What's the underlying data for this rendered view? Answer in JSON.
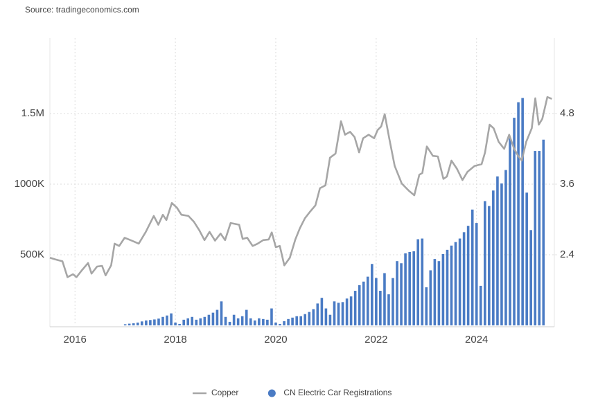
{
  "chart_data": {
    "type": "combo",
    "source": "Source: tradingeconomics.com",
    "xlim": [
      2015.5,
      2025.55
    ],
    "xticks": [
      2016,
      2018,
      2020,
      2022,
      2024
    ],
    "ylim": [
      0,
      2000000
    ],
    "yticks": [
      {
        "value": 500000,
        "label": "500K"
      },
      {
        "value": 1000000,
        "label": "1000K"
      },
      {
        "value": 1500000,
        "label": "1.5M"
      }
    ],
    "y2lim": [
      1.2,
      6.0
    ],
    "y2ticks": [
      2.4,
      3.6,
      4.8
    ],
    "grid": true,
    "legend": "bottom",
    "series": [
      {
        "name": "Copper",
        "type": "line",
        "axis": "y2",
        "color": "#a6a6a6",
        "x": [
          2015.5,
          2015.61,
          2015.75,
          2015.85,
          2015.96,
          2016.03,
          2016.14,
          2016.26,
          2016.33,
          2016.44,
          2016.54,
          2016.61,
          2016.72,
          2016.79,
          2016.88,
          2016.99,
          2017.13,
          2017.27,
          2017.41,
          2017.57,
          2017.66,
          2017.75,
          2017.82,
          2017.93,
          2018.03,
          2018.12,
          2018.26,
          2018.37,
          2018.48,
          2018.58,
          2018.68,
          2018.79,
          2018.9,
          2018.99,
          2019.1,
          2019.27,
          2019.34,
          2019.43,
          2019.54,
          2019.64,
          2019.75,
          2019.86,
          2019.92,
          2020.0,
          2020.08,
          2020.17,
          2020.28,
          2020.39,
          2020.48,
          2020.58,
          2020.69,
          2020.79,
          2020.88,
          2020.99,
          2021.08,
          2021.19,
          2021.3,
          2021.38,
          2021.48,
          2021.57,
          2021.66,
          2021.74,
          2021.85,
          2021.96,
          2022.03,
          2022.1,
          2022.17,
          2022.26,
          2022.37,
          2022.51,
          2022.65,
          2022.76,
          2022.86,
          2022.92,
          2023.01,
          2023.13,
          2023.23,
          2023.34,
          2023.41,
          2023.5,
          2023.61,
          2023.72,
          2023.82,
          2023.96,
          2024.1,
          2024.17,
          2024.26,
          2024.34,
          2024.44,
          2024.55,
          2024.65,
          2024.75,
          2024.83,
          2024.9,
          2024.99,
          2025.1,
          2025.17,
          2025.24,
          2025.31,
          2025.41,
          2025.5
        ],
        "values": [
          2.35,
          2.32,
          2.29,
          2.02,
          2.07,
          2.02,
          2.14,
          2.26,
          2.08,
          2.2,
          2.21,
          2.05,
          2.22,
          2.59,
          2.55,
          2.69,
          2.64,
          2.59,
          2.79,
          3.06,
          2.91,
          3.08,
          2.99,
          3.28,
          3.2,
          3.08,
          3.06,
          2.96,
          2.81,
          2.65,
          2.79,
          2.64,
          2.76,
          2.65,
          2.94,
          2.91,
          2.67,
          2.69,
          2.55,
          2.59,
          2.65,
          2.66,
          2.78,
          2.53,
          2.55,
          2.22,
          2.35,
          2.66,
          2.85,
          3.02,
          3.14,
          3.24,
          3.53,
          3.58,
          4.05,
          4.12,
          4.67,
          4.44,
          4.49,
          4.4,
          4.14,
          4.38,
          4.44,
          4.38,
          4.52,
          4.58,
          4.79,
          4.38,
          3.91,
          3.61,
          3.49,
          3.41,
          3.76,
          3.79,
          4.24,
          4.08,
          4.07,
          3.69,
          3.73,
          4.0,
          3.86,
          3.67,
          3.81,
          3.91,
          3.94,
          4.14,
          4.61,
          4.55,
          4.32,
          4.2,
          4.44,
          4.2,
          4.08,
          4.0,
          4.32,
          4.55,
          5.06,
          4.61,
          4.71,
          5.08,
          5.05
        ]
      },
      {
        "name": "CN Electric Car Registrations",
        "type": "bar",
        "axis": "y",
        "color": "#4a7bc4",
        "x": [
          2017,
          2017.083,
          2017.167,
          2017.25,
          2017.333,
          2017.417,
          2017.5,
          2017.583,
          2017.667,
          2017.75,
          2017.833,
          2017.917,
          2018,
          2018.083,
          2018.167,
          2018.25,
          2018.333,
          2018.417,
          2018.5,
          2018.583,
          2018.667,
          2018.75,
          2018.833,
          2018.917,
          2019,
          2019.083,
          2019.167,
          2019.25,
          2019.333,
          2019.417,
          2019.5,
          2019.583,
          2019.667,
          2019.75,
          2019.833,
          2019.917,
          2020,
          2020.083,
          2020.167,
          2020.25,
          2020.333,
          2020.417,
          2020.5,
          2020.583,
          2020.667,
          2020.75,
          2020.833,
          2020.917,
          2021,
          2021.083,
          2021.167,
          2021.25,
          2021.333,
          2021.417,
          2021.5,
          2021.583,
          2021.667,
          2021.75,
          2021.833,
          2021.917,
          2022,
          2022.083,
          2022.167,
          2022.25,
          2022.333,
          2022.417,
          2022.5,
          2022.583,
          2022.667,
          2022.75,
          2022.833,
          2022.917,
          2023,
          2023.083,
          2023.167,
          2023.25,
          2023.333,
          2023.417,
          2023.5,
          2023.583,
          2023.667,
          2023.75,
          2023.833,
          2023.917,
          2024,
          2024.083,
          2024.167,
          2024.25,
          2024.333,
          2024.417,
          2024.5,
          2024.583,
          2024.667,
          2024.75,
          2024.833,
          2024.917,
          2025,
          2025.083,
          2025.167,
          2025.25,
          2025.333
        ],
        "values": [
          8000,
          12000,
          15000,
          20000,
          28000,
          35000,
          38000,
          42000,
          48000,
          60000,
          70000,
          85000,
          20000,
          10000,
          40000,
          50000,
          60000,
          40000,
          50000,
          60000,
          75000,
          90000,
          110000,
          170000,
          60000,
          25000,
          75000,
          50000,
          65000,
          110000,
          50000,
          35000,
          50000,
          45000,
          40000,
          120000,
          20000,
          10000,
          30000,
          45000,
          55000,
          65000,
          65000,
          80000,
          95000,
          115000,
          155000,
          195000,
          120000,
          75000,
          170000,
          160000,
          165000,
          190000,
          205000,
          245000,
          285000,
          310000,
          345000,
          435000,
          335000,
          245000,
          370000,
          220000,
          335000,
          455000,
          440000,
          510000,
          520000,
          525000,
          610000,
          615000,
          270000,
          390000,
          470000,
          455000,
          505000,
          535000,
          565000,
          590000,
          615000,
          660000,
          705000,
          820000,
          725000,
          280000,
          880000,
          845000,
          955000,
          1055000,
          1005000,
          1100000,
          1325000,
          1470000,
          1580000,
          1610000,
          940000,
          675000,
          1235000,
          1235000,
          1315000
        ]
      }
    ]
  }
}
